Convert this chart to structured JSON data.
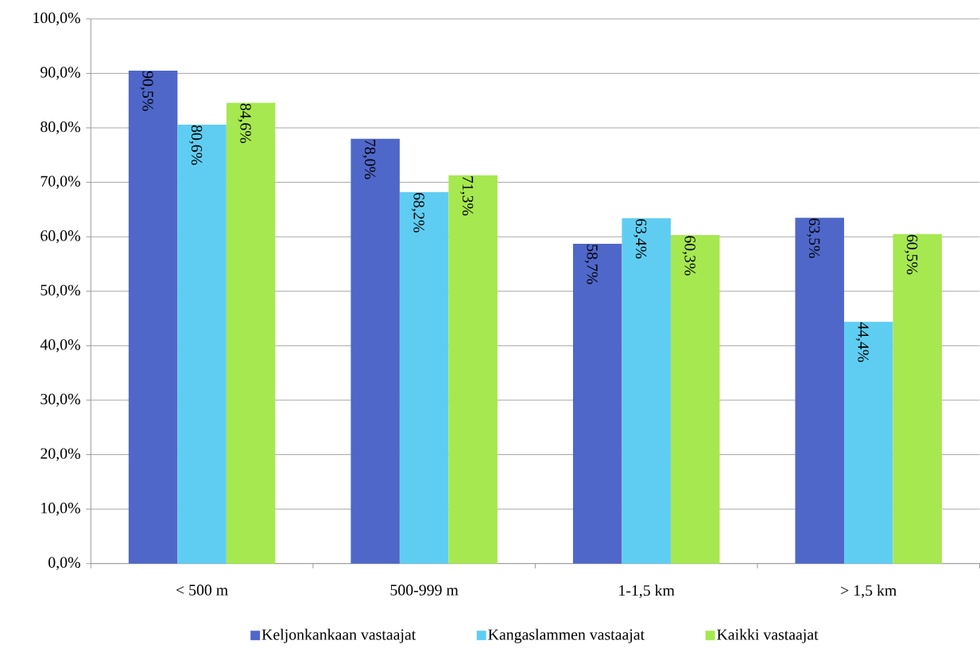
{
  "chart_data": {
    "type": "bar",
    "categories": [
      "< 500 m",
      "500-999 m",
      "1-1,5 km",
      "> 1,5 km"
    ],
    "series": [
      {
        "name": "Keljonkankaan vastaajat",
        "color": "#4f67c9",
        "values": [
          90.5,
          78.0,
          58.7,
          63.5
        ],
        "value_labels": [
          "90,5%",
          "78,0%",
          "58,7%",
          "63,5%"
        ]
      },
      {
        "name": "Kangaslammen vastaajat",
        "color": "#5fcdf2",
        "values": [
          80.6,
          68.2,
          63.4,
          44.4
        ],
        "value_labels": [
          "80,6%",
          "68,2%",
          "63,4%",
          "44,4%"
        ]
      },
      {
        "name": "Kaikki vastaajat",
        "color": "#a6e84f",
        "values": [
          84.6,
          71.3,
          60.3,
          60.5
        ],
        "value_labels": [
          "84,6%",
          "71,3%",
          "60,3%",
          "60,5%"
        ]
      }
    ],
    "ylim": [
      0,
      100
    ],
    "yticks": [
      {
        "value": 0,
        "label": "0,0%"
      },
      {
        "value": 10,
        "label": "10,0%"
      },
      {
        "value": 20,
        "label": "20,0%"
      },
      {
        "value": 30,
        "label": "30,0%"
      },
      {
        "value": 40,
        "label": "40,0%"
      },
      {
        "value": 50,
        "label": "50,0%"
      },
      {
        "value": 60,
        "label": "60,0%"
      },
      {
        "value": 70,
        "label": "70,0%"
      },
      {
        "value": 80,
        "label": "80,0%"
      },
      {
        "value": 90,
        "label": "90,0%"
      },
      {
        "value": 100,
        "label": "100,0%"
      }
    ],
    "grid": "y",
    "legend": "bottom"
  }
}
